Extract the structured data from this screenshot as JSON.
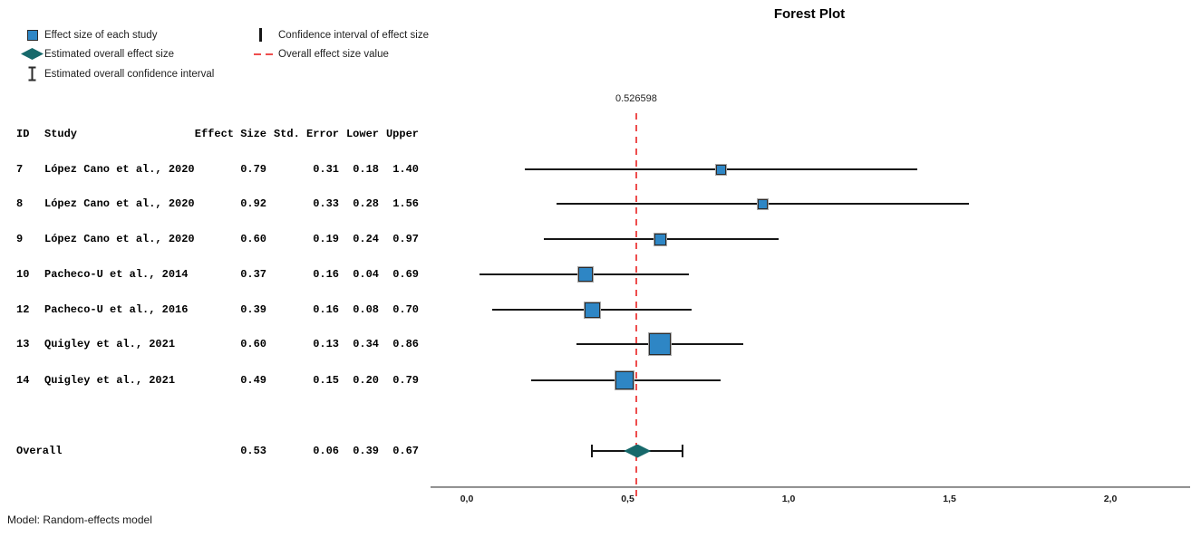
{
  "title": "Forest Plot",
  "footer": "Model: Random-effects model",
  "legend": {
    "items_left": [
      {
        "icon": "study-square-icon",
        "label": "Effect size of each study"
      },
      {
        "icon": "overall-diamond-icon",
        "label": "Estimated overall effect size"
      },
      {
        "icon": "overall-ci-ibeam-icon",
        "label": "Estimated overall confidence interval"
      }
    ],
    "items_right": [
      {
        "icon": "ci-bar-icon",
        "label": "Confidence interval of effect size"
      },
      {
        "icon": "overall-value-dash-icon",
        "label": "Overall effect size value"
      }
    ]
  },
  "table": {
    "columns": {
      "id": "ID",
      "study": "Study",
      "effect": "Effect Size",
      "std_error": "Std. Error",
      "lower": "Lower",
      "upper": "Upper"
    }
  },
  "chart_data": {
    "type": "forest",
    "title": "Forest Plot",
    "overall_value_label": "0.526598",
    "overall_value": 0.526598,
    "x_axis": {
      "tick_labels": [
        "0,0",
        "0,5",
        "1,0",
        "1,5",
        "2,0"
      ],
      "tick_values": [
        0,
        0.5,
        1.0,
        1.5,
        2.0
      ],
      "range": [
        -0.11,
        2.25
      ],
      "grid": false
    },
    "studies": [
      {
        "id": "7",
        "study": "López Cano et al., 2020",
        "effect": "0.79",
        "std_error": "0.31",
        "lower": "0.18",
        "upper": "1.40",
        "marker_size": 11
      },
      {
        "id": "8",
        "study": "López Cano et al., 2020",
        "effect": "0.92",
        "std_error": "0.33",
        "lower": "0.28",
        "upper": "1.56",
        "marker_size": 11
      },
      {
        "id": "9",
        "study": "López Cano et al., 2020",
        "effect": "0.60",
        "std_error": "0.19",
        "lower": "0.24",
        "upper": "0.97",
        "marker_size": 13
      },
      {
        "id": "10",
        "study": "Pacheco-U et al., 2014",
        "effect": "0.37",
        "std_error": "0.16",
        "lower": "0.04",
        "upper": "0.69",
        "marker_size": 16
      },
      {
        "id": "12",
        "study": "Pacheco-U et al., 2016",
        "effect": "0.39",
        "std_error": "0.16",
        "lower": "0.08",
        "upper": "0.70",
        "marker_size": 17
      },
      {
        "id": "13",
        "study": "Quigley et al., 2021",
        "effect": "0.60",
        "std_error": "0.13",
        "lower": "0.34",
        "upper": "0.86",
        "marker_size": 24
      },
      {
        "id": "14",
        "study": "Quigley et al., 2021",
        "effect": "0.49",
        "std_error": "0.15",
        "lower": "0.20",
        "upper": "0.79",
        "marker_size": 20
      }
    ],
    "overall": {
      "label": "Overall",
      "effect": "0.53",
      "std_error": "0.06",
      "lower": "0.39",
      "upper": "0.67"
    },
    "model_note": "Model: Random-effects model",
    "colors": {
      "study_marker": "#2e86c5",
      "overall_marker": "#17696b",
      "ci_line": "#161616",
      "overall_value_line": "#ee4d4d",
      "axis_line": "#9a9a9a"
    }
  }
}
